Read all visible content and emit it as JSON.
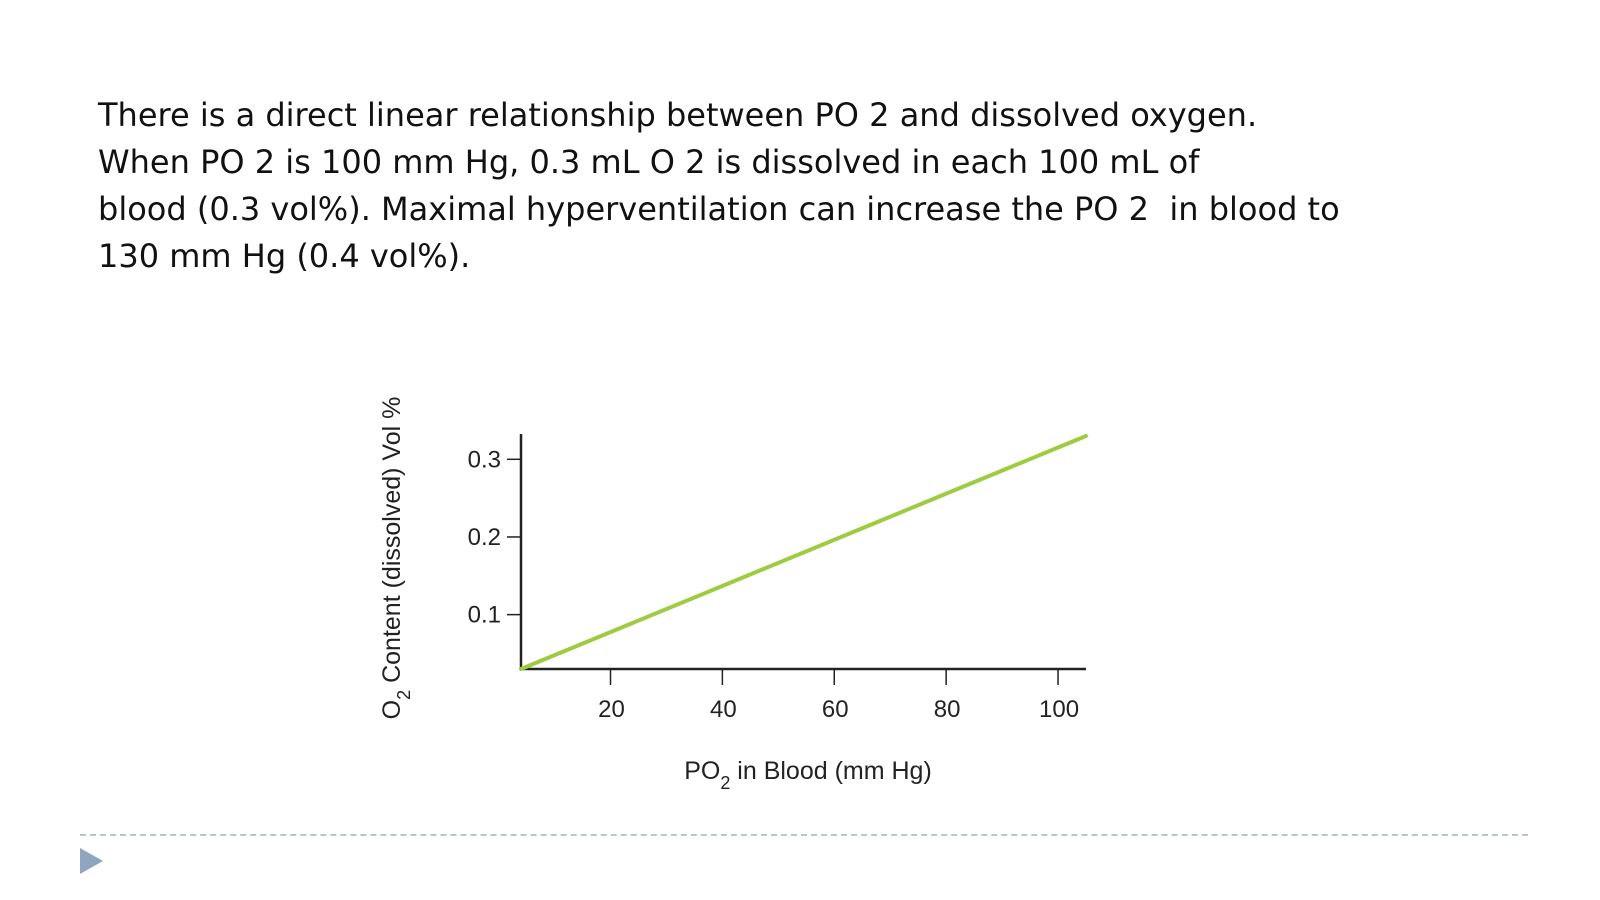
{
  "slide": {
    "lines": [
      "There is a direct linear relationship between PO 2 and dissolved oxygen.",
      "When PO 2 is 100 mm Hg, 0.3 mL O 2 is dissolved in each 100 mL of",
      "blood (0.3 vol%). Maximal hyperventilation can increase the PO 2  in blood to",
      "130 mm Hg (0.4 vol%)."
    ]
  },
  "chart_data": {
    "type": "line",
    "title": "",
    "xlabel": "PO2 in Blood (mm Hg)",
    "ylabel": "O2 Content (dissolved) Vol %",
    "x_ticks": [
      20,
      40,
      60,
      80,
      100
    ],
    "y_ticks": [
      0.1,
      0.2,
      0.3
    ],
    "xlim": [
      4,
      105
    ],
    "ylim": [
      0.03,
      0.33
    ],
    "grid": false,
    "series": [
      {
        "x": [
          4,
          105
        ],
        "y": [
          0.03,
          0.33
        ],
        "color": "#9dcc3f"
      }
    ]
  },
  "colors": {
    "line": "#9dcc3f",
    "axis": "#222222",
    "footer_rule": "#b8c6d4",
    "footer_arrow": "#8fa6c0"
  }
}
